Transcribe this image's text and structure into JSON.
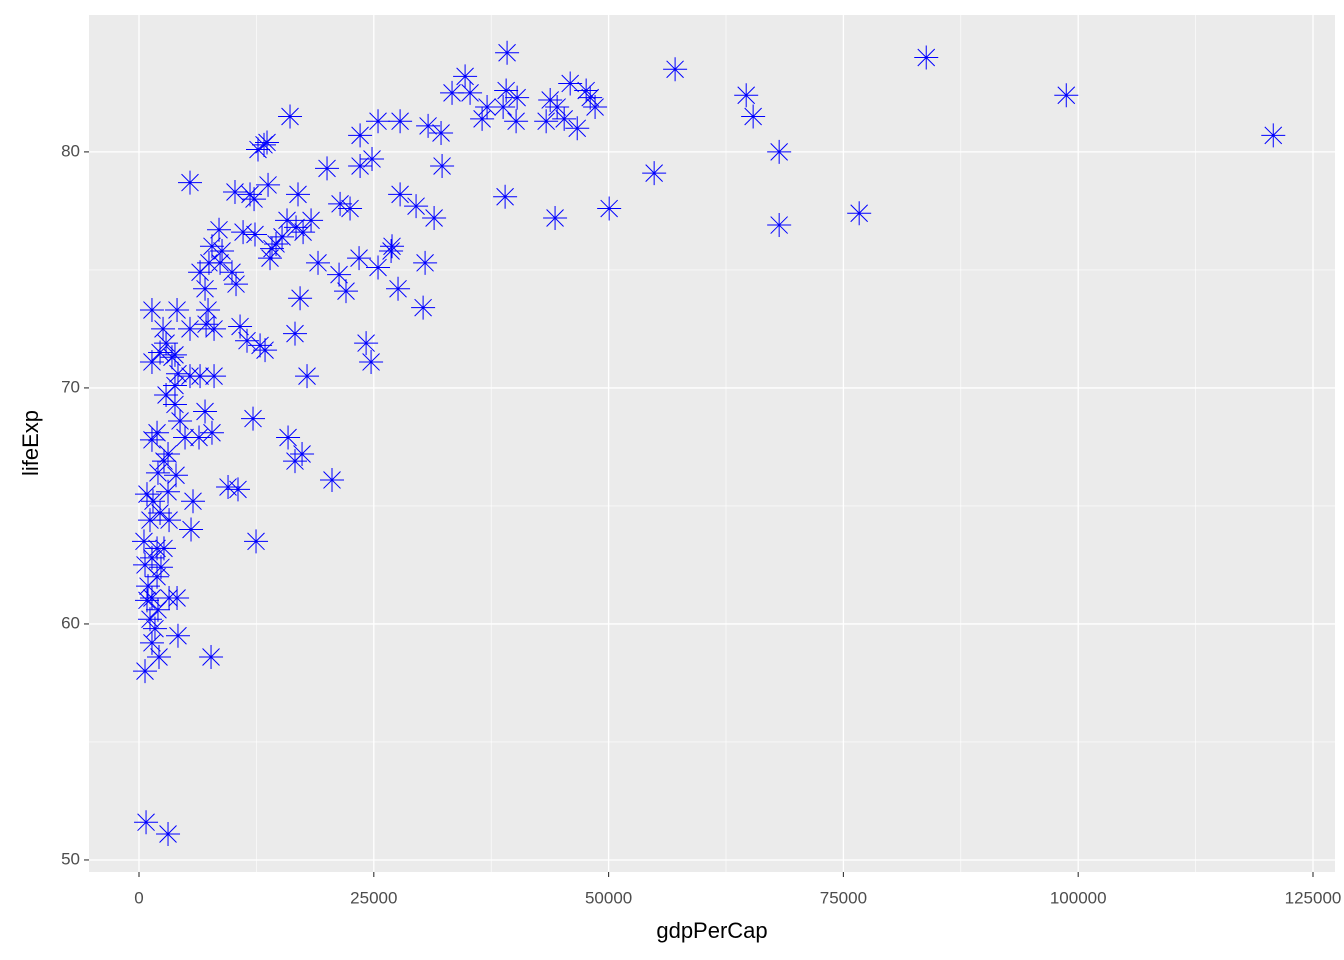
{
  "chart_data": {
    "type": "scatter",
    "x_label": "gdpPerCap",
    "y_label": "lifeExp",
    "xlim": [
      -5324,
      127343
    ],
    "ylim": [
      49.49,
      85.8
    ],
    "xticks": [
      0,
      25000,
      50000,
      75000,
      100000,
      125000
    ],
    "yticks": [
      50,
      60,
      70,
      80
    ],
    "grid": true,
    "marker": "asterisk",
    "series": [
      {
        "color": "#0000FF",
        "x": [
          39190,
          34720,
          33330,
          35250,
          37060,
          36530,
          38770,
          40260,
          40150,
          39090,
          43350,
          43780,
          44520,
          45270,
          45910,
          46660,
          47610,
          48040,
          48560,
          57080,
          64650,
          65390,
          68160,
          68160,
          76680,
          83820,
          98730,
          120770,
          54850,
          50060,
          44300,
          38980,
          32160,
          30780,
          32270,
          31420,
          29500,
          27800,
          27800,
          25450,
          23540,
          23540,
          24810,
          20020,
          16080,
          13310,
          12670,
          13630,
          11820,
          10220,
          13740,
          12250,
          11080,
          5430,
          16930,
          21410,
          22470,
          18320,
          16720,
          15760,
          15230,
          17470,
          14590,
          13950,
          14160,
          26940,
          26840,
          23430,
          25450,
          30460,
          19060,
          21300,
          27580,
          22040,
          17150,
          30250,
          8520,
          7770,
          8630,
          9900,
          10330,
          6500,
          7030,
          7450,
          4050,
          1380,
          7350,
          5430,
          7990,
          10760,
          11500,
          12890,
          13420,
          7140,
          16610,
          24180,
          24710,
          17890,
          7990,
          6500,
          5430,
          2560,
          2880,
          2240,
          3510,
          4150,
          1380,
          2880,
          3830,
          4370,
          7030,
          12140,
          7770,
          6390,
          4900,
          1920,
          1380,
          15870,
          16610,
          17360,
          3090,
          2660,
          3940,
          2020,
          20550,
          9480,
          10540,
          850,
          3090,
          1490,
          2240,
          1170,
          3200,
          5750,
          5540,
          12460,
          1920,
          1380,
          640,
          1920,
          960,
          1380,
          3200,
          4050,
          2020,
          1170,
          1700,
          4150,
          7670,
          2130,
          640,
          750,
          3090,
          530,
          850,
          2660,
          2340,
          1380,
          3830,
          3830,
          8840,
          12350
        ],
        "values": [
          84.2,
          83.2,
          82.5,
          82.5,
          81.9,
          81.4,
          81.9,
          82.3,
          81.3,
          82.6,
          81.3,
          82.2,
          81.9,
          81.4,
          82.9,
          81.0,
          82.6,
          82.3,
          81.9,
          83.5,
          82.4,
          81.5,
          80.0,
          76.9,
          77.4,
          84.0,
          82.4,
          80.7,
          79.1,
          77.6,
          77.2,
          78.1,
          80.8,
          81.1,
          79.4,
          77.2,
          77.7,
          78.2,
          81.3,
          81.3,
          80.7,
          79.4,
          79.7,
          79.3,
          81.5,
          80.3,
          80.1,
          80.4,
          78.2,
          78.3,
          78.6,
          78.0,
          76.6,
          78.7,
          78.2,
          77.8,
          77.6,
          77.1,
          76.8,
          77.1,
          76.4,
          76.6,
          76.1,
          75.5,
          75.9,
          76.0,
          75.8,
          75.5,
          75.1,
          75.3,
          75.3,
          74.8,
          74.2,
          74.1,
          73.8,
          73.4,
          76.7,
          76.0,
          75.3,
          74.9,
          74.4,
          74.9,
          74.2,
          75.3,
          73.3,
          73.3,
          73.3,
          72.5,
          72.5,
          72.6,
          72.0,
          71.8,
          71.6,
          72.7,
          72.3,
          71.9,
          71.1,
          70.5,
          70.5,
          70.5,
          70.5,
          72.5,
          71.9,
          71.5,
          71.3,
          70.6,
          71.1,
          69.7,
          69.3,
          68.6,
          69.0,
          68.7,
          68.1,
          67.9,
          67.9,
          68.1,
          67.8,
          67.9,
          66.9,
          67.2,
          67.2,
          66.9,
          66.3,
          66.4,
          66.1,
          65.8,
          65.7,
          65.5,
          65.6,
          65.2,
          64.7,
          64.4,
          64.4,
          65.2,
          64.0,
          63.5,
          63.2,
          62.8,
          62.5,
          62.0,
          61.6,
          61.1,
          61.1,
          61.1,
          60.6,
          60.2,
          59.8,
          59.5,
          58.6,
          58.6,
          58.0,
          51.6,
          51.1,
          63.5,
          61.0,
          63.2,
          62.4,
          59.2,
          71.4,
          70.1,
          75.8,
          76.5
        ]
      }
    ]
  }
}
